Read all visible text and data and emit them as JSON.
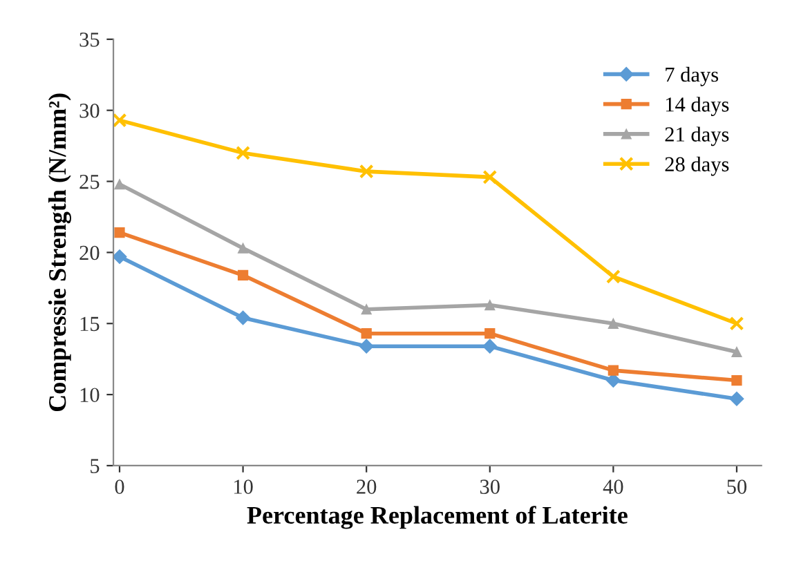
{
  "chart_data": {
    "type": "line",
    "xlabel": "Percentage Replacement of Laterite",
    "ylabel": "Compressie Strength (N/mm²)",
    "categories": [
      "0",
      "10",
      "20",
      "30",
      "40",
      "50"
    ],
    "series": [
      {
        "name": "7 days",
        "color": "#5b9bd5",
        "marker": "diamond",
        "values": [
          19.7,
          15.4,
          13.4,
          13.4,
          11.0,
          9.7
        ]
      },
      {
        "name": "14 days",
        "color": "#ed7d31",
        "marker": "square",
        "values": [
          21.4,
          18.4,
          14.3,
          14.3,
          11.7,
          11.0
        ]
      },
      {
        "name": "21 days",
        "color": "#a5a5a5",
        "marker": "triangle",
        "values": [
          24.8,
          20.3,
          16.0,
          16.3,
          15.0,
          13.0
        ]
      },
      {
        "name": "28 days",
        "color": "#ffc000",
        "marker": "cross",
        "values": [
          29.3,
          27.0,
          25.7,
          25.3,
          18.3,
          15.0
        ]
      }
    ],
    "ylim": [
      5,
      35
    ],
    "yticks": [
      5,
      10,
      15,
      20,
      25,
      30,
      35
    ],
    "grid": false,
    "legend": "top right",
    "line_style": "solid"
  }
}
